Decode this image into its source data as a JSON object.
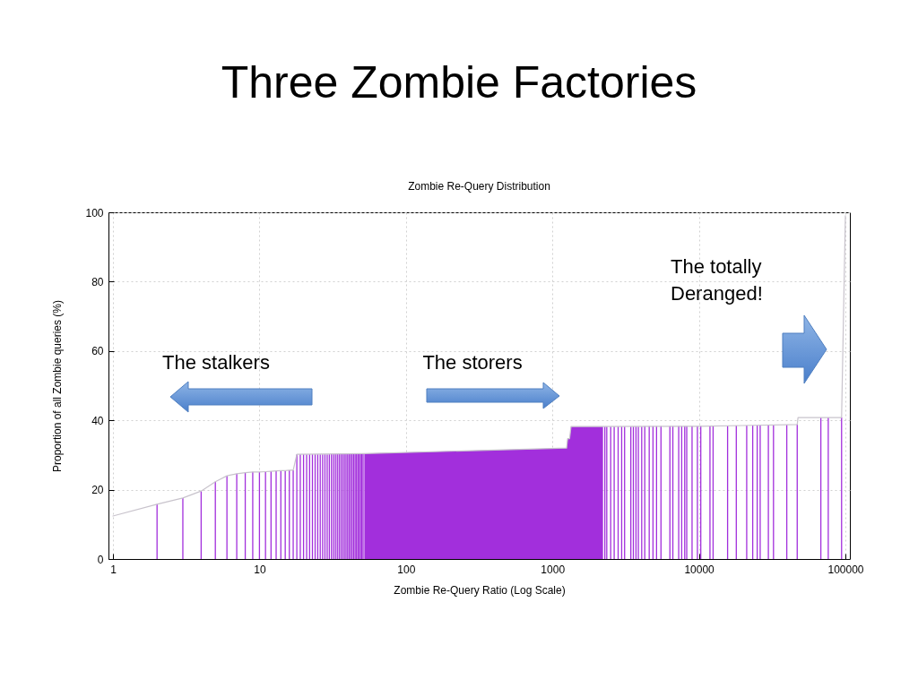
{
  "chart_data": {
    "type": "line",
    "title": "Three Zombie Factories",
    "subtitle": "Zombie Re-Query Distribution",
    "xlabel": "Zombie Re-Query Ratio (Log Scale)",
    "ylabel": "Proportion of all Zombie queries (%)",
    "xlim": [
      1,
      100000
    ],
    "xticks": [
      1,
      10,
      100,
      1000,
      10000,
      100000
    ],
    "ylim": [
      0,
      100
    ],
    "yticks": [
      0,
      20,
      40,
      60,
      80,
      100
    ],
    "log": "x",
    "grid": true,
    "annotations": [
      "The stalkers",
      "The storers",
      "The totally\nDeranged!"
    ],
    "series": [
      {
        "type": "area",
        "color": "#a22fdc",
        "x": [
          52,
          1250,
          1270,
          1310,
          1340,
          2215
        ],
        "values": [
          30.4,
          32.0,
          34.7,
          34.7,
          38.2,
          38.2
        ]
      },
      {
        "type": "bar",
        "color": "#a22fdc",
        "x": [
          2,
          3,
          4,
          5,
          6,
          7,
          8,
          9,
          10,
          11,
          12,
          13,
          14,
          15,
          16,
          17,
          18,
          19,
          20,
          21,
          22,
          23,
          24,
          25,
          26,
          27,
          28,
          29,
          30,
          31,
          32,
          33,
          34,
          35,
          36,
          37,
          38,
          39,
          40,
          41,
          42,
          43,
          44,
          45,
          46,
          47,
          48,
          49,
          50,
          51,
          2280,
          2350,
          2500,
          2640,
          2810,
          2970,
          3110,
          3430,
          3570,
          3720,
          3860,
          4070,
          4270,
          4580,
          4860,
          5140,
          5510,
          6340,
          6640,
          7280,
          7630,
          8000,
          8260,
          8980,
          9770,
          10300,
          11900,
          12500,
          15700,
          18000,
          21200,
          23300,
          25000,
          26200,
          29800,
          32300,
          39800,
          46900,
          68000,
          76400,
          94200
        ],
        "values": [
          15.8,
          17.6,
          19.6,
          22.3,
          24.0,
          24.6,
          24.9,
          25.1,
          25.1,
          25.2,
          25.3,
          25.4,
          25.5,
          25.5,
          25.6,
          25.6,
          30.2,
          30.2,
          30.2,
          30.2,
          30.2,
          30.2,
          30.2,
          30.2,
          30.2,
          30.2,
          30.2,
          30.2,
          30.2,
          30.3,
          30.3,
          30.3,
          30.3,
          30.3,
          30.3,
          30.3,
          30.3,
          30.3,
          30.3,
          30.3,
          30.3,
          30.3,
          30.3,
          30.3,
          30.4,
          30.4,
          30.4,
          30.4,
          30.4,
          30.4,
          38.2,
          38.2,
          38.2,
          38.2,
          38.2,
          38.2,
          38.2,
          38.2,
          38.2,
          38.2,
          38.2,
          38.2,
          38.3,
          38.3,
          38.3,
          38.3,
          38.3,
          38.3,
          38.3,
          38.3,
          38.3,
          38.3,
          38.3,
          38.3,
          38.3,
          38.4,
          38.4,
          38.4,
          38.4,
          38.5,
          38.5,
          38.5,
          38.5,
          38.5,
          38.6,
          38.6,
          38.7,
          38.8,
          40.8,
          40.8,
          40.8
        ]
      },
      {
        "color": "#c8c3cc",
        "x": [
          1,
          2,
          3,
          4,
          5,
          6,
          7,
          8,
          9,
          10,
          11,
          12,
          13,
          14,
          15,
          16,
          17,
          18,
          52,
          1250,
          1270,
          1310,
          1340,
          10000,
          20000,
          46900,
          47500,
          94200,
          100000
        ],
        "values": [
          12.4,
          15.8,
          17.6,
          19.6,
          22.3,
          24.0,
          24.6,
          24.9,
          25.1,
          25.1,
          25.2,
          25.3,
          25.4,
          25.5,
          25.5,
          25.6,
          25.6,
          30.2,
          30.4,
          32.0,
          34.7,
          34.7,
          38.2,
          38.3,
          38.5,
          38.8,
          40.8,
          40.8,
          99
        ]
      }
    ]
  }
}
